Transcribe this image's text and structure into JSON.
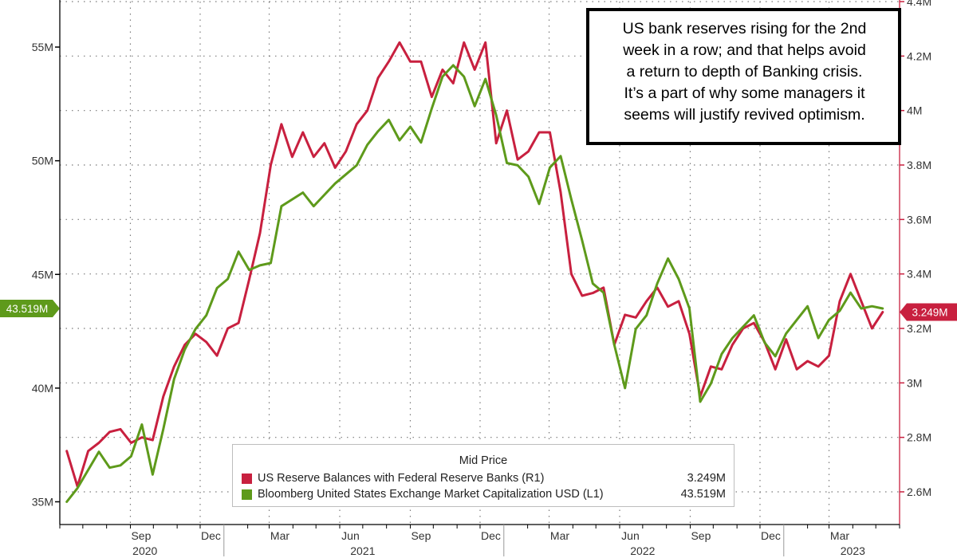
{
  "annotation": {
    "lines": [
      "US bank reserves rising for the 2nd",
      "week in a row; and that helps avoid",
      "a return to depth of Banking crisis.",
      "It’s a part of why some managers it",
      "seems will justify revived optimism."
    ]
  },
  "legend": {
    "title": "Mid Price",
    "items": [
      {
        "name": "US Reserve Balances with Federal Reserve Banks  (R1)",
        "value": "3.249M",
        "color": "#c8203f"
      },
      {
        "name": "Bloomberg United States Exchange Market Capitalization USD  (L1)",
        "value": "43.519M",
        "color": "#5e9a1b"
      }
    ]
  },
  "chart_data": {
    "type": "line",
    "grid": true,
    "x_range": [
      "2020-06",
      "2023-06"
    ],
    "x_tick_labels": [
      "Sep",
      "Dec",
      "Mar",
      "Jun",
      "Sep",
      "Dec",
      "Mar",
      "Jun",
      "Sep",
      "Dec",
      "Mar"
    ],
    "year_labels": [
      "2020",
      "2021",
      "2022",
      "2023"
    ],
    "left_axis": {
      "ylim": [
        34,
        57
      ],
      "ticks": [
        35,
        40,
        45,
        50,
        55
      ],
      "tick_labels": [
        "35M",
        "40M",
        "45M",
        "50M",
        "55M"
      ],
      "last_value_label": "43.519M"
    },
    "right_axis": {
      "ylim": [
        2.48,
        4.4
      ],
      "ticks": [
        2.6,
        2.8,
        3.0,
        3.2,
        3.4,
        3.6,
        3.8,
        4.0,
        4.2,
        4.4
      ],
      "tick_labels": [
        "2.6M",
        "2.8M",
        "3M",
        "3.2M",
        "3.4M",
        "3.6M",
        "3.8M",
        "4M",
        "4.2M",
        "4.4M"
      ],
      "last_value_label": "3.249M"
    },
    "series": [
      {
        "name": "US Reserve Balances with Federal Reserve Banks",
        "axis": "right",
        "color": "#c8203f",
        "x": [
          "2020-06-10",
          "2020-06-24",
          "2020-07-08",
          "2020-07-22",
          "2020-08-05",
          "2020-08-19",
          "2020-09-02",
          "2020-09-16",
          "2020-09-30",
          "2020-10-14",
          "2020-10-28",
          "2020-11-11",
          "2020-11-25",
          "2020-12-09",
          "2020-12-23",
          "2021-01-06",
          "2021-01-20",
          "2021-02-03",
          "2021-02-17",
          "2021-03-03",
          "2021-03-17",
          "2021-03-31",
          "2021-04-14",
          "2021-04-28",
          "2021-05-12",
          "2021-05-26",
          "2021-06-09",
          "2021-06-23",
          "2021-07-07",
          "2021-07-21",
          "2021-08-04",
          "2021-08-18",
          "2021-09-01",
          "2021-09-15",
          "2021-09-29",
          "2021-10-13",
          "2021-10-27",
          "2021-11-10",
          "2021-11-24",
          "2021-12-08",
          "2021-12-22",
          "2022-01-05",
          "2022-01-19",
          "2022-02-02",
          "2022-02-16",
          "2022-03-02",
          "2022-03-16",
          "2022-03-30",
          "2022-04-13",
          "2022-04-27",
          "2022-05-11",
          "2022-05-25",
          "2022-06-08",
          "2022-06-22",
          "2022-07-06",
          "2022-07-20",
          "2022-08-03",
          "2022-08-17",
          "2022-08-31",
          "2022-09-14",
          "2022-09-28",
          "2022-10-12",
          "2022-10-26",
          "2022-11-09",
          "2022-11-23",
          "2022-12-07",
          "2022-12-21",
          "2023-01-04",
          "2023-01-18",
          "2023-02-01",
          "2023-02-15",
          "2023-03-01",
          "2023-03-15",
          "2023-03-29",
          "2023-04-12",
          "2023-04-26",
          "2023-05-10"
        ],
        "values": [
          2.75,
          2.62,
          2.75,
          2.78,
          2.82,
          2.83,
          2.78,
          2.8,
          2.79,
          2.95,
          3.06,
          3.14,
          3.18,
          3.15,
          3.1,
          3.2,
          3.22,
          3.38,
          3.55,
          3.8,
          3.95,
          3.83,
          3.92,
          3.83,
          3.88,
          3.79,
          3.85,
          3.95,
          4.0,
          4.12,
          4.18,
          4.25,
          4.18,
          4.18,
          4.05,
          4.15,
          4.1,
          4.25,
          4.15,
          4.25,
          3.88,
          4.0,
          3.82,
          3.85,
          3.92,
          3.92,
          3.7,
          3.4,
          3.32,
          3.33,
          3.35,
          3.14,
          3.25,
          3.24,
          3.3,
          3.35,
          3.28,
          3.3,
          3.18,
          2.95,
          3.06,
          3.05,
          3.14,
          3.2,
          3.22,
          3.15,
          3.05,
          3.16,
          3.05,
          3.08,
          3.06,
          3.1,
          3.3,
          3.4,
          3.3,
          3.2,
          3.26
        ]
      },
      {
        "name": "Bloomberg United States Exchange Market Capitalization USD",
        "axis": "left",
        "color": "#5e9a1b",
        "x": [
          "2020-06-10",
          "2020-06-24",
          "2020-07-08",
          "2020-07-22",
          "2020-08-05",
          "2020-08-19",
          "2020-09-02",
          "2020-09-16",
          "2020-09-30",
          "2020-10-14",
          "2020-10-28",
          "2020-11-11",
          "2020-11-25",
          "2020-12-09",
          "2020-12-23",
          "2021-01-06",
          "2021-01-20",
          "2021-02-03",
          "2021-02-17",
          "2021-03-03",
          "2021-03-17",
          "2021-03-31",
          "2021-04-14",
          "2021-04-28",
          "2021-05-12",
          "2021-05-26",
          "2021-06-09",
          "2021-06-23",
          "2021-07-07",
          "2021-07-21",
          "2021-08-04",
          "2021-08-18",
          "2021-09-01",
          "2021-09-15",
          "2021-09-29",
          "2021-10-13",
          "2021-10-27",
          "2021-11-10",
          "2021-11-24",
          "2021-12-08",
          "2021-12-22",
          "2022-01-05",
          "2022-01-19",
          "2022-02-02",
          "2022-02-16",
          "2022-03-02",
          "2022-03-16",
          "2022-03-30",
          "2022-04-13",
          "2022-04-27",
          "2022-05-11",
          "2022-05-25",
          "2022-06-08",
          "2022-06-22",
          "2022-07-06",
          "2022-07-20",
          "2022-08-03",
          "2022-08-17",
          "2022-08-31",
          "2022-09-14",
          "2022-09-28",
          "2022-10-12",
          "2022-10-26",
          "2022-11-09",
          "2022-11-23",
          "2022-12-07",
          "2022-12-21",
          "2023-01-04",
          "2023-01-18",
          "2023-02-01",
          "2023-02-15",
          "2023-03-01",
          "2023-03-15",
          "2023-03-29",
          "2023-04-12",
          "2023-04-26",
          "2023-05-10"
        ],
        "values": [
          35.0,
          35.6,
          36.4,
          37.2,
          36.5,
          36.6,
          37.0,
          38.4,
          36.2,
          38.2,
          40.4,
          41.7,
          42.6,
          43.2,
          44.4,
          44.8,
          46.0,
          45.2,
          45.4,
          45.5,
          48.0,
          48.3,
          48.6,
          48.0,
          48.5,
          49.0,
          49.4,
          49.8,
          50.7,
          51.3,
          51.8,
          50.9,
          51.5,
          50.8,
          52.3,
          53.7,
          54.2,
          53.7,
          52.4,
          53.6,
          52.0,
          49.9,
          49.8,
          49.3,
          48.1,
          49.7,
          50.2,
          48.3,
          46.5,
          44.6,
          44.2,
          41.9,
          40.0,
          42.6,
          43.2,
          44.6,
          45.7,
          44.8,
          43.5,
          39.4,
          40.2,
          41.5,
          42.2,
          42.7,
          43.2,
          42.0,
          41.4,
          42.4,
          43.0,
          43.6,
          42.2,
          43.0,
          43.4,
          44.2,
          43.5,
          43.6,
          43.5
        ]
      }
    ]
  }
}
